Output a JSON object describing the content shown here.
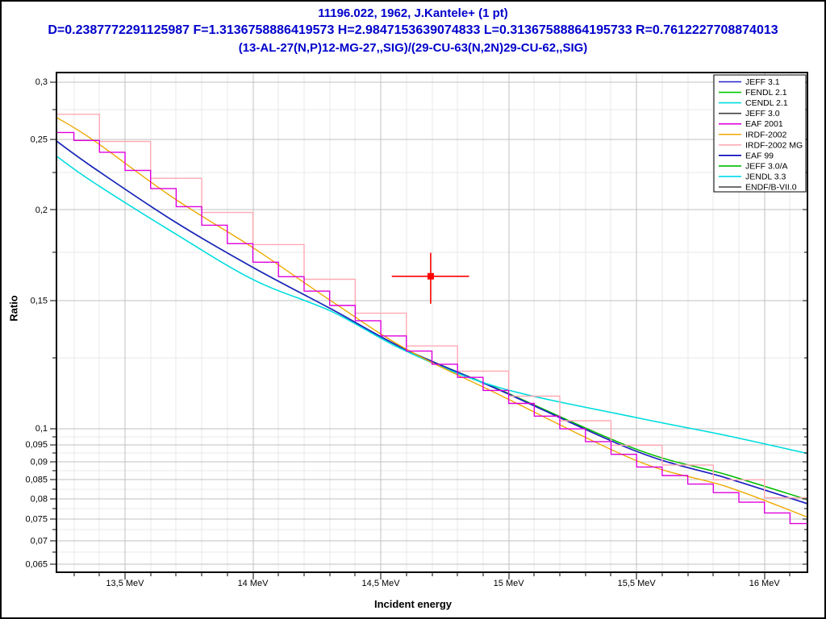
{
  "header": {
    "line1": "11196.022, 1962, J.Kantele+ (1 pt)",
    "line2": "D=0.2387772291125987 F=1.3136758886419573 H=2.9847153639074833 L=0.31367588864195733 R=0.7612227708874013",
    "line3": "(13-AL-27(N,P)12-MG-27,,SIG)/(29-CU-63(N,2N)29-CU-62,,SIG)",
    "color": "#0000cc"
  },
  "chart_data": {
    "type": "line",
    "xlabel": "Incident energy",
    "ylabel": "Ratio",
    "x_unit": "MeV",
    "x_range": [
      13.232,
      16.168
    ],
    "y_range": [
      0.0634,
      0.309
    ],
    "y_scale": "log",
    "x_ticks": [
      {
        "value": 13.5,
        "label": "13,5 MeV"
      },
      {
        "value": 14.0,
        "label": "14 MeV"
      },
      {
        "value": 14.5,
        "label": "14,5 MeV"
      },
      {
        "value": 15.0,
        "label": "15 MeV"
      },
      {
        "value": 15.5,
        "label": "15,5 MeV"
      },
      {
        "value": 16.0,
        "label": "16 MeV"
      }
    ],
    "x_minor_step": 0.1,
    "y_ticks": [
      {
        "value": 0.3,
        "label": "0,3"
      },
      {
        "value": 0.25,
        "label": "0,25"
      },
      {
        "value": 0.2,
        "label": "0,2"
      },
      {
        "value": 0.15,
        "label": "0,15"
      },
      {
        "value": 0.1,
        "label": "0,1"
      },
      {
        "value": 0.095,
        "label": "0,095"
      },
      {
        "value": 0.09,
        "label": "0,09"
      },
      {
        "value": 0.085,
        "label": "0,085"
      },
      {
        "value": 0.08,
        "label": "0,08"
      },
      {
        "value": 0.075,
        "label": "0,075"
      },
      {
        "value": 0.07,
        "label": "0,07"
      },
      {
        "value": 0.065,
        "label": "0,065"
      }
    ],
    "y_minor": [
      0.275,
      0.225,
      0.175,
      0.125,
      0.0975,
      0.0925,
      0.0875,
      0.0825,
      0.0775,
      0.0725,
      0.0675
    ],
    "grid": {
      "major_color": "#c0c0c0",
      "minor_color": "#e9e9e9"
    },
    "legend": {
      "position": "top-right",
      "entries": [
        {
          "label": "JEFF 3.1",
          "color": "#2222cc"
        },
        {
          "label": "FENDL 2.1",
          "color": "#00cc00"
        },
        {
          "label": "CENDL 2.1",
          "color": "#00dddd"
        },
        {
          "label": "JEFF 3.0",
          "color": "#404040"
        },
        {
          "label": "EAF 2001",
          "color": "#dd00dd"
        },
        {
          "label": "IRDF-2002",
          "color": "#eeaa00"
        },
        {
          "label": "IRDF-2002 MG",
          "color": "#ffaab4"
        },
        {
          "label": "EAF 99",
          "color": "#0000bb"
        },
        {
          "label": "JEFF 3.0/A",
          "color": "#00bb00"
        },
        {
          "label": "JENDL 3.3",
          "color": "#00d8ee"
        },
        {
          "label": "ENDF/B-VII.0",
          "color": "#404040"
        }
      ]
    },
    "series": [
      {
        "name": "JEFF 3.0",
        "color": "#404040",
        "style": "smooth",
        "points": [
          [
            13.232,
            0.2487
          ],
          [
            13.374,
            0.2289
          ],
          [
            13.689,
            0.1931
          ],
          [
            14.004,
            0.1663
          ],
          [
            14.31,
            0.1458
          ],
          [
            14.596,
            0.1285
          ],
          [
            14.965,
            0.1129
          ],
          [
            15.5,
            0.093
          ],
          [
            15.85,
            0.0855
          ],
          [
            16.168,
            0.0788
          ]
        ]
      },
      {
        "name": "ENDF/B-VII.0",
        "color": "#404040",
        "style": "smooth",
        "points": [
          [
            13.232,
            0.2487
          ],
          [
            13.374,
            0.2289
          ],
          [
            13.689,
            0.1931
          ],
          [
            14.004,
            0.1663
          ],
          [
            14.31,
            0.1458
          ],
          [
            14.596,
            0.1285
          ],
          [
            14.965,
            0.1129
          ],
          [
            15.5,
            0.093
          ],
          [
            15.85,
            0.0855
          ],
          [
            16.168,
            0.0788
          ]
        ]
      },
      {
        "name": "FENDL 2.1",
        "color": "#00cc00",
        "style": "smooth",
        "points": [
          [
            13.232,
            0.2487
          ],
          [
            13.374,
            0.2289
          ],
          [
            13.689,
            0.1931
          ],
          [
            14.004,
            0.1663
          ],
          [
            14.31,
            0.1458
          ],
          [
            14.596,
            0.1285
          ],
          [
            14.965,
            0.1131
          ],
          [
            15.5,
            0.0936
          ],
          [
            15.85,
            0.0864
          ],
          [
            16.168,
            0.0798
          ]
        ]
      },
      {
        "name": "JEFF 3.0/A",
        "color": "#00bb00",
        "style": "smooth",
        "points": [
          [
            13.232,
            0.2487
          ],
          [
            13.374,
            0.2289
          ],
          [
            13.689,
            0.1931
          ],
          [
            14.004,
            0.1663
          ],
          [
            14.31,
            0.1458
          ],
          [
            14.596,
            0.1285
          ],
          [
            14.965,
            0.1131
          ],
          [
            15.5,
            0.0936
          ],
          [
            15.85,
            0.0864
          ],
          [
            16.168,
            0.0798
          ]
        ]
      },
      {
        "name": "EAF 99",
        "color": "#0000bb",
        "style": "smooth",
        "points": [
          [
            13.232,
            0.2487
          ],
          [
            13.374,
            0.2289
          ],
          [
            13.689,
            0.1931
          ],
          [
            14.004,
            0.1663
          ],
          [
            14.31,
            0.1458
          ],
          [
            14.596,
            0.1285
          ],
          [
            14.965,
            0.1129
          ],
          [
            15.5,
            0.093
          ],
          [
            15.85,
            0.0855
          ],
          [
            16.168,
            0.0788
          ]
        ]
      },
      {
        "name": "JEFF 3.1",
        "color": "#2222cc",
        "style": "smooth",
        "points": [
          [
            13.232,
            0.2487
          ],
          [
            13.374,
            0.2289
          ],
          [
            13.689,
            0.1931
          ],
          [
            14.004,
            0.1663
          ],
          [
            14.31,
            0.1458
          ],
          [
            14.596,
            0.1285
          ],
          [
            14.965,
            0.1129
          ],
          [
            15.5,
            0.093
          ],
          [
            15.85,
            0.0855
          ],
          [
            16.168,
            0.0788
          ]
        ]
      },
      {
        "name": "JENDL 3.3",
        "color": "#00d8ee",
        "style": "smooth",
        "points": [
          [
            13.232,
            0.2371
          ],
          [
            13.374,
            0.2185
          ],
          [
            13.689,
            0.1861
          ],
          [
            14.004,
            0.1601
          ],
          [
            14.31,
            0.1448
          ],
          [
            14.596,
            0.1279
          ],
          [
            14.965,
            0.1138
          ],
          [
            15.5,
            0.1035
          ],
          [
            15.85,
            0.0978
          ],
          [
            16.168,
            0.0924
          ]
        ]
      },
      {
        "name": "CENDL 2.1",
        "color": "#00dddd",
        "style": "smooth",
        "points": [
          [
            13.232,
            0.2371
          ],
          [
            13.374,
            0.2185
          ],
          [
            13.689,
            0.1861
          ],
          [
            14.004,
            0.1601
          ],
          [
            14.31,
            0.1448
          ],
          [
            14.596,
            0.1279
          ],
          [
            14.965,
            0.1138
          ],
          [
            15.5,
            0.1035
          ],
          [
            15.85,
            0.0978
          ],
          [
            16.168,
            0.0924
          ]
        ]
      },
      {
        "name": "IRDF-2002",
        "color": "#eeaa00",
        "style": "smooth",
        "points": [
          [
            13.232,
            0.268
          ],
          [
            13.374,
            0.2497
          ],
          [
            13.689,
            0.2077
          ],
          [
            14.004,
            0.177
          ],
          [
            14.31,
            0.1495
          ],
          [
            14.596,
            0.1288
          ],
          [
            14.965,
            0.1112
          ],
          [
            15.5,
            0.0903
          ],
          [
            15.85,
            0.0832
          ],
          [
            16.168,
            0.0755
          ]
        ]
      },
      {
        "name": "IRDF-2002 MG",
        "color": "#ffaab4",
        "style": "step",
        "step_width": 0.2,
        "points": [
          [
            13.232,
            0.2707
          ],
          [
            13.374,
            0.2522
          ],
          [
            13.689,
            0.2098
          ],
          [
            14.004,
            0.1788
          ],
          [
            14.31,
            0.151
          ],
          [
            14.596,
            0.1301
          ],
          [
            14.965,
            0.1123
          ],
          [
            15.5,
            0.0912
          ],
          [
            15.85,
            0.084
          ],
          [
            16.168,
            0.0763
          ]
        ]
      },
      {
        "name": "EAF 2001",
        "color": "#dd00dd",
        "style": "step",
        "step_width": 0.1,
        "points": [
          [
            13.232,
            0.2555
          ],
          [
            13.4,
            0.24
          ],
          [
            13.7,
            0.202
          ],
          [
            14.004,
            0.169
          ],
          [
            14.31,
            0.147
          ],
          [
            14.596,
            0.128
          ],
          [
            14.965,
            0.1098
          ],
          [
            15.5,
            0.0885
          ],
          [
            15.85,
            0.0805
          ],
          [
            16.168,
            0.0723
          ]
        ]
      }
    ],
    "data_point": {
      "label": "11196.022 J.Kantele+ 1962",
      "E": 14.695,
      "E_min": 14.543,
      "E_max": 14.845,
      "ratio": 0.162,
      "ratio_min": 0.1485,
      "ratio_max": 0.1745,
      "color": "#ff0000"
    }
  }
}
